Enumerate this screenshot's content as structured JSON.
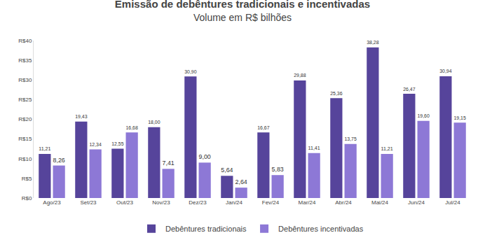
{
  "chart_data": {
    "type": "bar",
    "title": "Emissão de debêntures tradicionais e incentivadas",
    "subtitle": "Volume em R$ bilhões",
    "categories": [
      "Ago/23",
      "Set/23",
      "Out/23",
      "Nov/23",
      "Dez/23",
      "Jan/24",
      "Fev/24",
      "Mar/24",
      "Abr/24",
      "Mai/24",
      "Jun/24",
      "Jul/24"
    ],
    "series": [
      {
        "name": "Debêntures tradicionais",
        "color": "#56449b",
        "values": [
          11.21,
          19.43,
          12.55,
          18.0,
          30.9,
          5.64,
          16.67,
          29.88,
          25.36,
          38.28,
          26.47,
          30.94
        ],
        "value_labels": [
          "11,21",
          "19,43",
          "12,55",
          "18,00",
          "30,90",
          "5,64",
          "16,67",
          "29,88",
          "25,36",
          "38,28",
          "26,47",
          "30,94"
        ]
      },
      {
        "name": "Debêntures incentivadas",
        "color": "#8d78d6",
        "values": [
          8.26,
          12.34,
          16.68,
          7.41,
          9.0,
          2.64,
          5.83,
          11.41,
          13.75,
          11.21,
          19.6,
          19.15
        ],
        "value_labels": [
          "8,26",
          "12,34",
          "16,68",
          "7,41",
          "9,00",
          "2,64",
          "5,83",
          "11,41",
          "13,75",
          "11,21",
          "19,60",
          "19,15"
        ]
      }
    ],
    "ylim": [
      0,
      40
    ],
    "yticks": [
      {
        "value": 0,
        "label": "R$0"
      },
      {
        "value": 5,
        "label": "R$5"
      },
      {
        "value": 10,
        "label": "R$10"
      },
      {
        "value": 15,
        "label": "R$15"
      },
      {
        "value": 20,
        "label": "R$20"
      },
      {
        "value": 25,
        "label": "R$25"
      },
      {
        "value": 30,
        "label": "R$30"
      },
      {
        "value": 35,
        "label": "R$35"
      },
      {
        "value": 40,
        "label": "R$40"
      }
    ],
    "grid": false,
    "legend": "bottom",
    "data_labels": true
  }
}
